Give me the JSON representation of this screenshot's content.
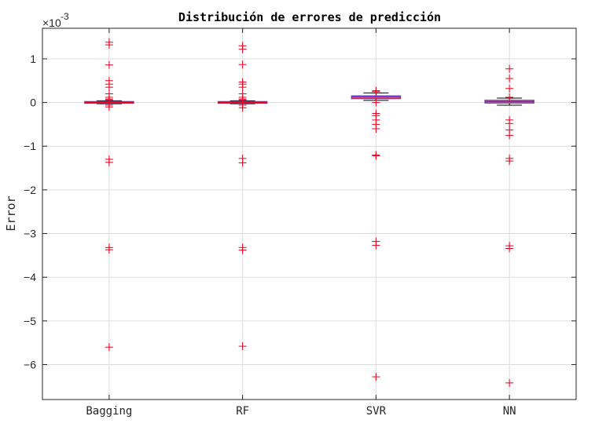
{
  "chart_data": {
    "type": "box",
    "title": "Distribución de errores de predicción",
    "xlabel": "",
    "ylabel": "Error",
    "y_multiplier_base": "×10",
    "y_multiplier_exp": "-3",
    "ylim": [
      -6.8,
      1.7
    ],
    "yticks": [
      1,
      0,
      -1,
      -2,
      -3,
      -4,
      -5,
      -6
    ],
    "ytick_labels": [
      "1",
      "0",
      "−1",
      "−2",
      "−3",
      "−4",
      "−5",
      "−6"
    ],
    "grid": true,
    "categories": [
      "Bagging",
      "RF",
      "SVR",
      "NN"
    ],
    "boxes": [
      {
        "name": "Bagging",
        "q1": -0.01,
        "median": 0.0,
        "q3": 0.02,
        "whisker_low": -0.03,
        "whisker_high": 0.04,
        "outliers": [
          1.38,
          1.32,
          0.86,
          0.5,
          0.42,
          0.35,
          0.2,
          0.12,
          0.08,
          0.06,
          -0.06,
          -0.1,
          -1.3,
          -1.37,
          -3.32,
          -3.37,
          -5.6
        ]
      },
      {
        "name": "RF",
        "q1": -0.01,
        "median": 0.0,
        "q3": 0.02,
        "whisker_low": -0.03,
        "whisker_high": 0.04,
        "outliers": [
          1.3,
          1.22,
          0.87,
          0.47,
          0.42,
          0.35,
          0.2,
          0.12,
          0.08,
          0.06,
          -0.06,
          -0.12,
          -1.28,
          -1.38,
          -3.32,
          -3.38,
          -5.58
        ]
      },
      {
        "name": "SVR",
        "q1": 0.09,
        "median": 0.12,
        "q3": 0.15,
        "whisker_low": 0.05,
        "whisker_high": 0.22,
        "outliers": [
          0.27,
          0.25,
          0.0,
          -0.25,
          -0.3,
          -0.4,
          -0.5,
          -0.6,
          -1.2,
          -1.22,
          -3.18,
          -3.27,
          -6.28
        ]
      },
      {
        "name": "NN",
        "q1": -0.01,
        "median": 0.02,
        "q3": 0.05,
        "whisker_low": -0.06,
        "whisker_high": 0.1,
        "outliers": [
          0.77,
          0.55,
          0.32,
          0.12,
          -0.4,
          -0.48,
          -0.63,
          -0.75,
          -1.28,
          -1.34,
          -3.28,
          -3.34,
          -6.42
        ]
      }
    ],
    "colors": {
      "box": "#6a3dd6",
      "median": "#e8001c",
      "outlier": "#e8001c",
      "whisker": "#000000",
      "grid": "#dcdcdc",
      "axis": "#262626"
    }
  }
}
